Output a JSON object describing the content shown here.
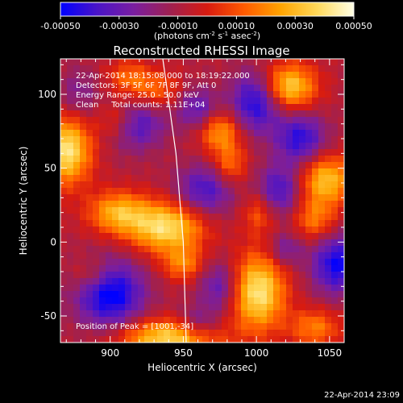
{
  "chart_data": {
    "type": "heatmap",
    "title": "Reconstructed RHESSI Image",
    "xlabel": "Heliocentric X (arcsec)",
    "ylabel": "Heliocentric Y (arcsec)",
    "xlim": [
      866,
      1060
    ],
    "ylim": [
      -68,
      124
    ],
    "xticks": [
      900,
      950,
      1000,
      1050
    ],
    "yticks": [
      -50,
      0,
      50,
      100
    ],
    "colorbar": {
      "range": [
        -0.0005,
        0.0005
      ],
      "ticks": [
        "-0.00050",
        "-0.00030",
        "-0.00010",
        "0.00010",
        "0.00030",
        "0.00050"
      ],
      "tick_values": [
        -0.0005,
        -0.0003,
        -0.0001,
        0.0001,
        0.0003,
        0.0005
      ],
      "unit_prefix": "(photons cm",
      "unit_exp1": "-2",
      "unit_mid1": " s",
      "unit_exp2": "-1",
      "unit_mid2": " asec",
      "unit_exp3": "-2",
      "unit_suffix": ")",
      "colormap": [
        "#0000ff",
        "#4a14c8",
        "#7a1ea0",
        "#a02050",
        "#d81b10",
        "#ff5a00",
        "#ffa300",
        "#ffd95a",
        "#ffffe6"
      ]
    },
    "annotations": [
      "22-Apr-2014 18:15:08.000 to 18:19:22.000",
      "Detectors: 3F 5F 6F 7F 8F 9F, Att 0",
      "Energy Range: 25.0 - 50.0 keV",
      "Clean     Total counts: 1.11E+04"
    ],
    "peak_label": "Position of Peak = [1001,-34]",
    "peak": [
      1001,
      -34
    ],
    "limb_curve": [
      [
        952,
        -68
      ],
      [
        950,
        0
      ],
      [
        945,
        60
      ],
      [
        936,
        124
      ]
    ],
    "blobs": [
      {
        "x": 870,
        "y": 62,
        "value": 0.0005,
        "sx": 12,
        "sy": 16
      },
      {
        "x": 905,
        "y": 82,
        "value": 0.00028,
        "sx": 10,
        "sy": 10
      },
      {
        "x": 930,
        "y": 103,
        "value": 0.00022,
        "sx": 12,
        "sy": 9
      },
      {
        "x": 912,
        "y": 112,
        "value": 0.0002,
        "sx": 10,
        "sy": 8
      },
      {
        "x": 1022,
        "y": 105,
        "value": 0.00045,
        "sx": 13,
        "sy": 11
      },
      {
        "x": 975,
        "y": 75,
        "value": 0.00032,
        "sx": 10,
        "sy": 10
      },
      {
        "x": 982,
        "y": 52,
        "value": 0.00024,
        "sx": 8,
        "sy": 10
      },
      {
        "x": 1048,
        "y": 42,
        "value": 0.0004,
        "sx": 12,
        "sy": 12
      },
      {
        "x": 1040,
        "y": 15,
        "value": 0.00025,
        "sx": 10,
        "sy": 10
      },
      {
        "x": 1002,
        "y": 20,
        "value": 0.0002,
        "sx": 8,
        "sy": 10
      },
      {
        "x": 938,
        "y": 10,
        "value": 0.00048,
        "sx": 18,
        "sy": 12
      },
      {
        "x": 905,
        "y": 20,
        "value": 0.00035,
        "sx": 14,
        "sy": 10
      },
      {
        "x": 950,
        "y": -15,
        "value": 0.00025,
        "sx": 10,
        "sy": 8
      },
      {
        "x": 1001,
        "y": -34,
        "value": 0.0005,
        "sx": 13,
        "sy": 18
      },
      {
        "x": 1040,
        "y": -58,
        "value": 0.00026,
        "sx": 12,
        "sy": 9
      },
      {
        "x": 940,
        "y": -65,
        "value": 0.00045,
        "sx": 24,
        "sy": 9
      },
      {
        "x": 888,
        "y": -22,
        "value": 0.00018,
        "sx": 10,
        "sy": 8
      },
      {
        "x": 915,
        "y": 80,
        "value": -0.00035,
        "sx": 14,
        "sy": 12
      },
      {
        "x": 1000,
        "y": 95,
        "value": -0.0004,
        "sx": 12,
        "sy": 14
      },
      {
        "x": 960,
        "y": 90,
        "value": -0.00025,
        "sx": 10,
        "sy": 10
      },
      {
        "x": 1030,
        "y": 70,
        "value": -0.00035,
        "sx": 12,
        "sy": 12
      },
      {
        "x": 965,
        "y": 35,
        "value": -0.0003,
        "sx": 14,
        "sy": 12
      },
      {
        "x": 1015,
        "y": 35,
        "value": -0.0003,
        "sx": 10,
        "sy": 12
      },
      {
        "x": 1055,
        "y": -15,
        "value": -0.0004,
        "sx": 12,
        "sy": 14
      },
      {
        "x": 1020,
        "y": -5,
        "value": -0.0002,
        "sx": 8,
        "sy": 8
      },
      {
        "x": 975,
        "y": -30,
        "value": -0.00025,
        "sx": 10,
        "sy": 12
      },
      {
        "x": 900,
        "y": -35,
        "value": -0.00045,
        "sx": 16,
        "sy": 16
      },
      {
        "x": 960,
        "y": -55,
        "value": -0.0002,
        "sx": 10,
        "sy": 8
      },
      {
        "x": 878,
        "y": 100,
        "value": -0.00015,
        "sx": 10,
        "sy": 12
      }
    ]
  },
  "footer": {
    "timestamp": "22-Apr-2014 23:09"
  }
}
